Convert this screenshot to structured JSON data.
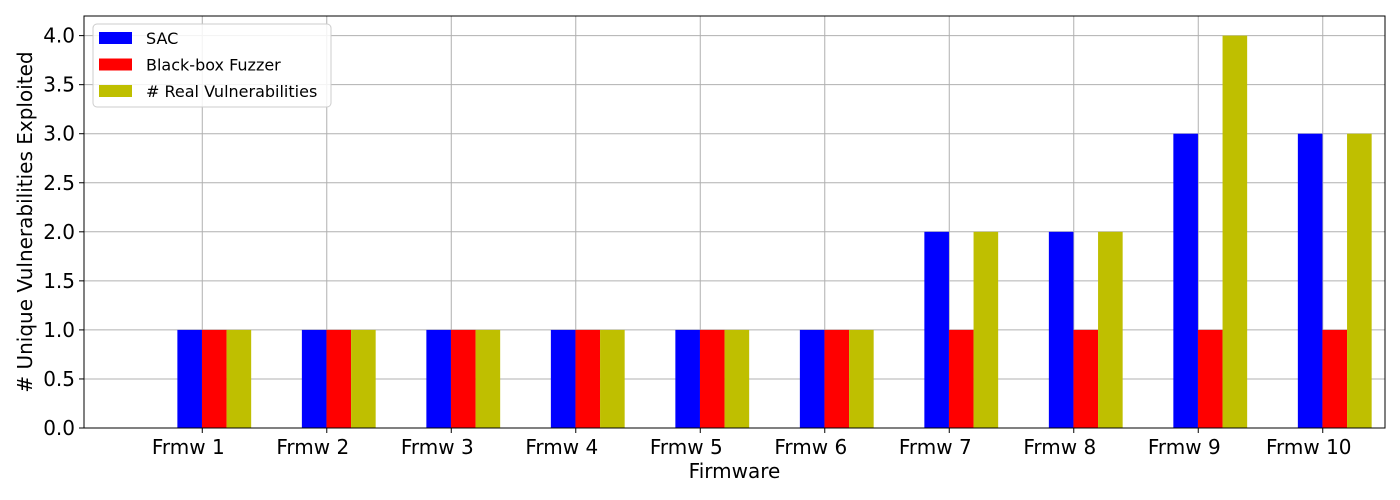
{
  "chart_data": {
    "type": "bar",
    "title": "",
    "xlabel": "Firmware",
    "ylabel": "# Unique Vulnerabilities Exploited",
    "categories": [
      "Frmw 1",
      "Frmw 2",
      "Frmw 3",
      "Frmw 4",
      "Frmw 5",
      "Frmw 6",
      "Frmw 7",
      "Frmw 8",
      "Frmw 9",
      "Frmw 10"
    ],
    "series": [
      {
        "name": "SAC",
        "color": "#0000ff",
        "values": [
          1,
          1,
          1,
          1,
          1,
          1,
          2,
          2,
          3,
          3
        ]
      },
      {
        "name": "Black-box Fuzzer",
        "color": "#ff0000",
        "values": [
          1,
          1,
          1,
          1,
          1,
          1,
          1,
          1,
          1,
          1
        ]
      },
      {
        "name": "# Real Vulnerabilities",
        "color": "#bfbf00",
        "values": [
          1,
          1,
          1,
          1,
          1,
          1,
          2,
          2,
          4,
          3
        ]
      }
    ],
    "ylim": [
      0,
      4.2
    ],
    "yticks": [
      "0.0",
      "0.5",
      "1.0",
      "1.5",
      "2.0",
      "2.5",
      "3.0",
      "3.5",
      "4.0"
    ],
    "grid": true,
    "legend_position": "top-left"
  }
}
